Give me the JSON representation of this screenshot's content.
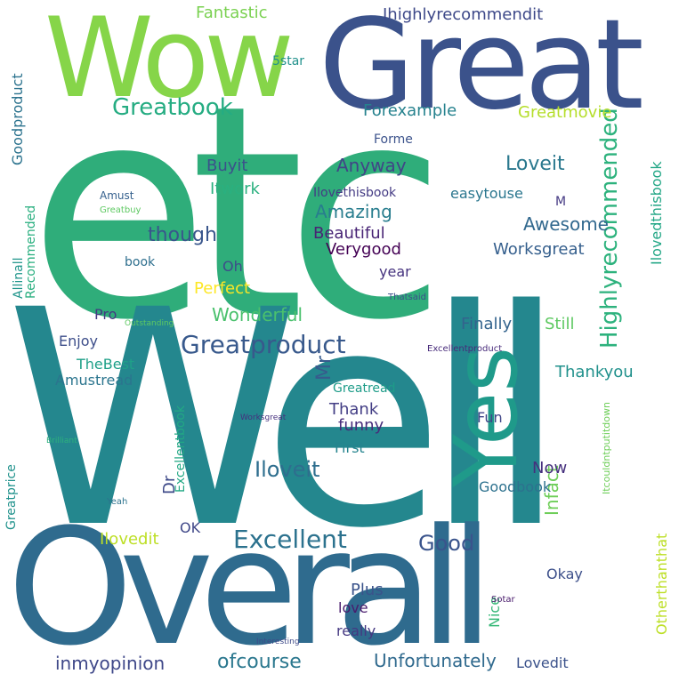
{
  "words": [
    {
      "text": "etc",
      "color": "#2fad7a"
    },
    {
      "text": "Well",
      "color": "#24878e"
    },
    {
      "text": "Overall",
      "color": "#2f6b8e"
    },
    {
      "text": "Great",
      "color": "#3b528b"
    },
    {
      "text": "Wow",
      "color": "#86d549"
    },
    {
      "text": "Yes",
      "color": "#1f9a8a"
    },
    {
      "text": "Greatproduct",
      "color": "#38598c"
    },
    {
      "text": "Excellent",
      "color": "#2c728e"
    },
    {
      "text": "Ihighlyrecommendit",
      "color": "#3e4989"
    },
    {
      "text": "Fantastic",
      "color": "#7ad151"
    },
    {
      "text": "Greatbook",
      "color": "#25ac82"
    },
    {
      "text": "Highlyrecommended",
      "color": "#2db27d"
    },
    {
      "text": "Greatmovie",
      "color": "#b5de2b"
    },
    {
      "text": "Forexample",
      "color": "#26828e"
    },
    {
      "text": "Loveit",
      "color": "#2a788e"
    },
    {
      "text": "Awesome",
      "color": "#31688e"
    },
    {
      "text": "Iloveit",
      "color": "#2e6e8e"
    },
    {
      "text": "Good",
      "color": "#3a548c"
    },
    {
      "text": "Unfortunately",
      "color": "#306a8e"
    },
    {
      "text": "ofcourse",
      "color": "#2a778e"
    },
    {
      "text": "inmyopinion",
      "color": "#3f4889"
    },
    {
      "text": "Wonderful",
      "color": "#4ac16d"
    },
    {
      "text": "Anyway",
      "color": "#414487"
    },
    {
      "text": "Amazing",
      "color": "#287d8e"
    },
    {
      "text": "Beautiful",
      "color": "#482475"
    },
    {
      "text": "Verygood",
      "color": "#440154"
    },
    {
      "text": "Worksgreat",
      "color": "#355f8d"
    },
    {
      "text": "though",
      "color": "#39568c"
    },
    {
      "text": "Perfect",
      "color": "#fde725"
    },
    {
      "text": "Buyit",
      "color": "#3b518b"
    },
    {
      "text": "Itwork",
      "color": "#2ab07f"
    },
    {
      "text": "Finally",
      "color": "#33638d"
    },
    {
      "text": "Still",
      "color": "#5ec962"
    },
    {
      "text": "Thankyou",
      "color": "#21918c"
    },
    {
      "text": "Infact",
      "color": "#6ece58"
    },
    {
      "text": "Otherthanthat",
      "color": "#bddf26"
    },
    {
      "text": "Ilovedthisbook",
      "color": "#21a685"
    },
    {
      "text": "Goodbook",
      "color": "#2d718e"
    },
    {
      "text": "Now",
      "color": "#46307e"
    },
    {
      "text": "Thank",
      "color": "#433e85"
    },
    {
      "text": "funny",
      "color": "#472d7b"
    },
    {
      "text": "Fun",
      "color": "#404688"
    },
    {
      "text": "First",
      "color": "#25848e"
    },
    {
      "text": "Enjoy",
      "color": "#3d4e8a"
    },
    {
      "text": "TheBest",
      "color": "#1fa088"
    },
    {
      "text": "Amustread",
      "color": "#2b758e"
    },
    {
      "text": "Greatread",
      "color": "#1e9c89"
    },
    {
      "text": "Pro",
      "color": "#443983"
    },
    {
      "text": "Mr",
      "color": "#375b8d"
    },
    {
      "text": "Dr",
      "color": "#3e4a89"
    },
    {
      "text": "OK",
      "color": "#3f4788"
    },
    {
      "text": "Okay",
      "color": "#3c4f8a"
    },
    {
      "text": "Plus",
      "color": "#3a538b"
    },
    {
      "text": "love",
      "color": "#481b6d"
    },
    {
      "text": "really",
      "color": "#453882"
    },
    {
      "text": "Lovedit",
      "color": "#3b528b"
    },
    {
      "text": "Nice",
      "color": "#37b878"
    },
    {
      "text": "Ilovedit",
      "color": "#bddf26"
    },
    {
      "text": "Excellentbook",
      "color": "#22a884"
    },
    {
      "text": "Goodproduct",
      "color": "#2c738e"
    },
    {
      "text": "Allinall",
      "color": "#1f958b"
    },
    {
      "text": "Recommended",
      "color": "#29af7f"
    },
    {
      "text": "Greatprice",
      "color": "#20928c"
    },
    {
      "text": "Ilovethisbook",
      "color": "#443b84"
    },
    {
      "text": "easytouse",
      "color": "#2a768e"
    },
    {
      "text": "Greatbuy",
      "color": "#5ec962"
    },
    {
      "text": "Amust",
      "color": "#35608d"
    },
    {
      "text": "5star",
      "color": "#21918c"
    },
    {
      "text": "Forme",
      "color": "#3b528b"
    },
    {
      "text": "year",
      "color": "#46337f"
    },
    {
      "text": "Oh",
      "color": "#3e4c8a"
    },
    {
      "text": "book",
      "color": "#2e6f8e"
    },
    {
      "text": "Excellentproduct",
      "color": "#472a7a"
    },
    {
      "text": "Thatsaid",
      "color": "#3c4f8a"
    },
    {
      "text": "Outstanding",
      "color": "#5ec962"
    },
    {
      "text": "Brilliant",
      "color": "#2db27d"
    },
    {
      "text": "Itcouldntputitdown",
      "color": "#6ece58"
    },
    {
      "text": "Sotar",
      "color": "#48196b"
    },
    {
      "text": "Interesting",
      "color": "#3e4a89"
    },
    {
      "text": "Yeah",
      "color": "#2c738e"
    },
    {
      "text": "M",
      "color": "#443983"
    },
    {
      "text": "Worksgreat",
      "color": "#46307e"
    }
  ]
}
